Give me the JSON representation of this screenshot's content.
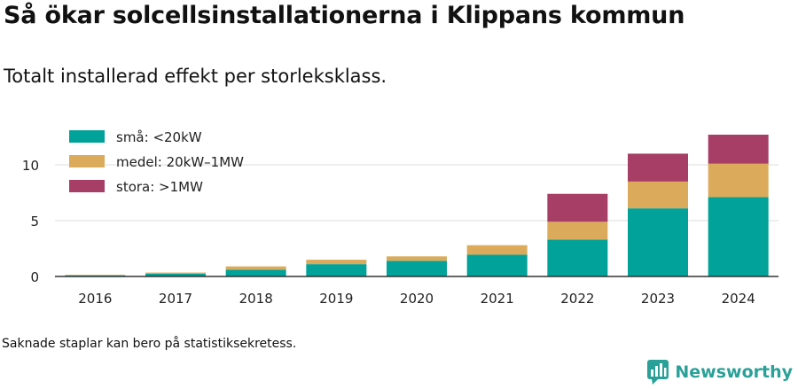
{
  "title": "Så ökar solcellsinstallationerna i Klippans kommun",
  "subtitle": "Totalt installerad effekt per storleksklass.",
  "footnote": "Saknade staplar kan bero på statistiksekretess.",
  "brand": {
    "name": "Newsworthy",
    "logo_icon": "newsworthy-logo-icon"
  },
  "colors": {
    "sma": "#00a29a",
    "medel": "#dbab5b",
    "stora": "#a73e66",
    "grid": "#dddddd",
    "axis": "#333333"
  },
  "chart_data": {
    "type": "bar",
    "stacked": true,
    "categories": [
      "2016",
      "2017",
      "2018",
      "2019",
      "2020",
      "2021",
      "2022",
      "2023",
      "2024"
    ],
    "series": [
      {
        "name": "små: <20kW",
        "color": "#00a29a",
        "values": [
          0.1,
          0.25,
          0.6,
          1.1,
          1.4,
          1.95,
          3.3,
          6.1,
          7.1
        ]
      },
      {
        "name": "medel: 20kW–1MW",
        "color": "#dbab5b",
        "values": [
          0.05,
          0.1,
          0.3,
          0.4,
          0.4,
          0.85,
          1.6,
          2.4,
          3.0
        ]
      },
      {
        "name": "stora: >1MW",
        "color": "#a73e66",
        "values": [
          0,
          0,
          0,
          0,
          0,
          0,
          2.5,
          2.5,
          2.6
        ]
      }
    ],
    "ylim": [
      0,
      13
    ],
    "yticks": [
      0,
      5,
      10
    ],
    "xlabel": "",
    "ylabel": "",
    "grid": true,
    "legend_position": "top-left"
  }
}
